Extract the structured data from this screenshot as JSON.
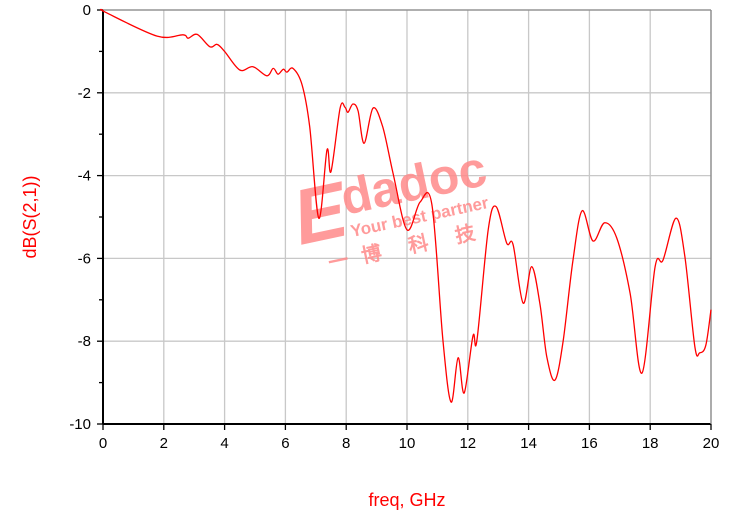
{
  "chart_data": {
    "type": "line",
    "title": "",
    "xlabel": "freq, GHz",
    "ylabel": "dB(S(2,1))",
    "xlim": [
      0,
      20
    ],
    "ylim": [
      -10,
      0
    ],
    "xticks": [
      "0",
      "2",
      "4",
      "6",
      "8",
      "10",
      "12",
      "14",
      "16",
      "18",
      "20"
    ],
    "yticks": [
      "0",
      "-2",
      "-4",
      "-6",
      "-8",
      "-10"
    ],
    "grid": true,
    "line_color": "#ff0000",
    "series": [
      {
        "x": [
          0,
          0.07,
          1.78,
          2.63,
          2.8,
          3.1,
          3.52,
          3.75,
          4.0,
          4.5,
          4.93,
          5.39,
          5.6,
          5.76,
          5.93,
          6.05,
          6.25,
          6.55,
          6.8,
          7.1,
          7.37,
          7.5,
          7.8,
          7.96,
          8.06,
          8.22,
          8.39,
          8.59,
          8.88,
          9.2,
          9.54,
          10.0,
          10.43,
          10.82,
          11.18,
          11.45,
          11.68,
          11.88,
          12.17,
          12.3,
          12.67,
          12.93,
          13.28,
          13.49,
          13.82,
          14.1,
          14.37,
          14.6,
          14.87,
          15.14,
          15.46,
          15.76,
          16.12,
          16.5,
          16.9,
          17.34,
          17.73,
          18.16,
          18.42,
          18.85,
          19.14,
          19.47,
          19.63,
          19.83,
          20.0
        ],
        "y": [
          0,
          -0.05,
          -0.63,
          -0.6,
          -0.68,
          -0.59,
          -0.89,
          -0.83,
          -1.0,
          -1.45,
          -1.37,
          -1.59,
          -1.41,
          -1.55,
          -1.43,
          -1.5,
          -1.41,
          -1.81,
          -2.82,
          -5.03,
          -3.38,
          -3.9,
          -2.37,
          -2.35,
          -2.47,
          -2.27,
          -2.44,
          -3.22,
          -2.37,
          -2.82,
          -3.94,
          -5.31,
          -4.64,
          -4.7,
          -7.97,
          -9.47,
          -8.4,
          -9.25,
          -7.87,
          -7.98,
          -5.31,
          -4.75,
          -5.63,
          -5.67,
          -7.08,
          -6.2,
          -7.08,
          -8.38,
          -8.94,
          -7.97,
          -6.04,
          -4.85,
          -5.58,
          -5.14,
          -5.51,
          -6.84,
          -8.77,
          -6.2,
          -6.04,
          -5.03,
          -5.96,
          -8.14,
          -8.28,
          -8.1,
          -7.24
        ]
      }
    ]
  },
  "watermark": {
    "brand": "Edadoc",
    "tagline": "Your best partner",
    "chinese": "一 博 科 技",
    "color": "#ff8080"
  }
}
